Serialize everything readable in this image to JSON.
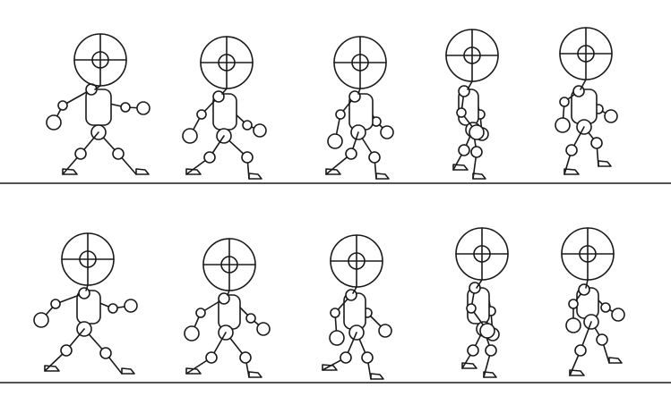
{
  "figure": {
    "subject": "walk-cycle",
    "rows": [
      {
        "name": "top-row",
        "poses": [
          "pose-1",
          "pose-2",
          "pose-3",
          "pose-4",
          "pose-5"
        ]
      },
      {
        "name": "bottom-row",
        "poses": [
          "pose-6",
          "pose-7",
          "pose-8",
          "pose-9",
          "pose-10"
        ]
      }
    ],
    "line_color": "#1a1a1a",
    "background": "#ffffff"
  }
}
